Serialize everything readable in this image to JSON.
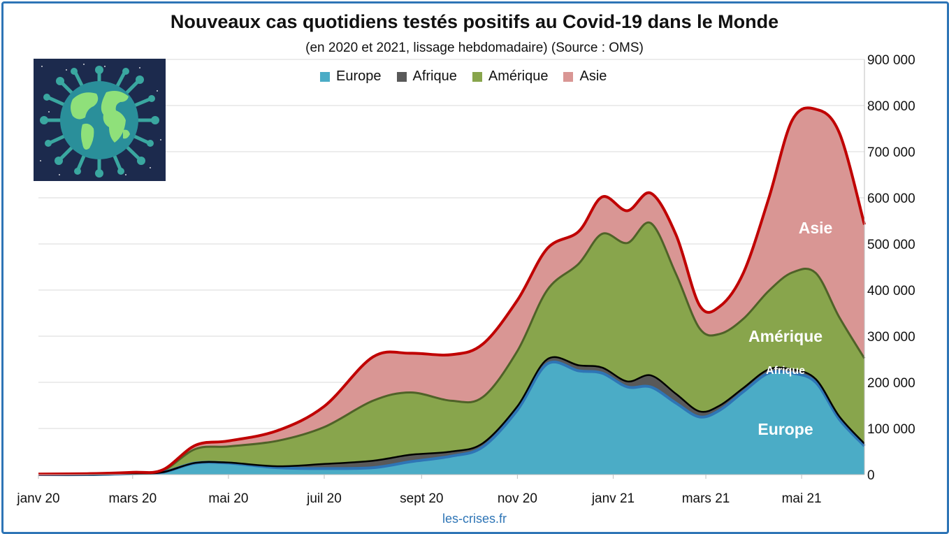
{
  "title": "Nouveaux cas quotidiens testés positifs au Covid-19 dans le Monde",
  "subtitle": "(en 2020 et 2021, lissage hebdomadaire) (Source : OMS)",
  "source": "les-crises.fr",
  "legend": [
    {
      "label": "Europe",
      "color": "#4bacc6"
    },
    {
      "label": "Afrique",
      "color": "#595959"
    },
    {
      "label": "Amérique",
      "color": "#88a54c"
    },
    {
      "label": "Asie",
      "color": "#d99694"
    }
  ],
  "area_labels": {
    "europe": "Europe",
    "afrique": "Afrique",
    "amerique": "Amérique",
    "asie": "Asie"
  },
  "colors": {
    "total_line": "#c00000",
    "europe_line": "#2e75b6",
    "afrique_line": "#000000",
    "amerique_line": "#4f6228",
    "grid": "#d9d9d9",
    "frame": "#2e75b6"
  },
  "chart_data": {
    "type": "area",
    "stacked": true,
    "x_tick_labels": [
      "janv 20",
      "mars 20",
      "mai 20",
      "juil 20",
      "sept 20",
      "nov 20",
      "janv 21",
      "mars 21",
      "mai 21"
    ],
    "y_tick_labels": [
      "0",
      "100 000",
      "200 000",
      "300 000",
      "400 000",
      "500 000",
      "600 000",
      "700 000",
      "800 000",
      "900 000"
    ],
    "ylim": [
      0,
      900000
    ],
    "y_axis_side": "right",
    "grid": true,
    "legend_position": "top",
    "x": [
      "2020-01-01",
      "2020-02-01",
      "2020-03-01",
      "2020-03-20",
      "2020-04-10",
      "2020-05-01",
      "2020-06-01",
      "2020-07-01",
      "2020-08-01",
      "2020-08-25",
      "2020-09-20",
      "2020-10-10",
      "2020-11-01",
      "2020-11-20",
      "2020-12-10",
      "2020-12-25",
      "2021-01-10",
      "2021-01-25",
      "2021-02-10",
      "2021-02-25",
      "2021-03-10",
      "2021-03-25",
      "2021-04-10",
      "2021-04-25",
      "2021-05-10",
      "2021-05-25",
      "2021-06-10"
    ],
    "series": [
      {
        "name": "Europe",
        "values": [
          0,
          0,
          2000,
          5000,
          25000,
          25000,
          15000,
          13000,
          15000,
          28000,
          40000,
          60000,
          140000,
          240000,
          225000,
          220000,
          190000,
          190000,
          155000,
          125000,
          140000,
          180000,
          220000,
          220000,
          200000,
          120000,
          62000
        ]
      },
      {
        "name": "Afrique",
        "values": [
          0,
          0,
          0,
          0,
          500,
          1000,
          3000,
          10000,
          15000,
          15000,
          10000,
          8000,
          8000,
          10000,
          12000,
          12000,
          12000,
          25000,
          20000,
          12000,
          10000,
          8000,
          8000,
          8000,
          7000,
          6000,
          5000
        ]
      },
      {
        "name": "Amérique",
        "values": [
          0,
          0,
          1000,
          3000,
          30000,
          35000,
          55000,
          80000,
          130000,
          135000,
          110000,
          100000,
          120000,
          150000,
          220000,
          290000,
          300000,
          330000,
          260000,
          180000,
          155000,
          150000,
          170000,
          210000,
          230000,
          215000,
          185000
        ]
      },
      {
        "name": "Asie",
        "values": [
          1000,
          2000,
          2000,
          2000,
          8000,
          12000,
          22000,
          45000,
          95000,
          85000,
          100000,
          115000,
          110000,
          90000,
          70000,
          80000,
          70000,
          65000,
          85000,
          50000,
          60000,
          100000,
          200000,
          330000,
          355000,
          400000,
          290000
        ]
      }
    ]
  }
}
